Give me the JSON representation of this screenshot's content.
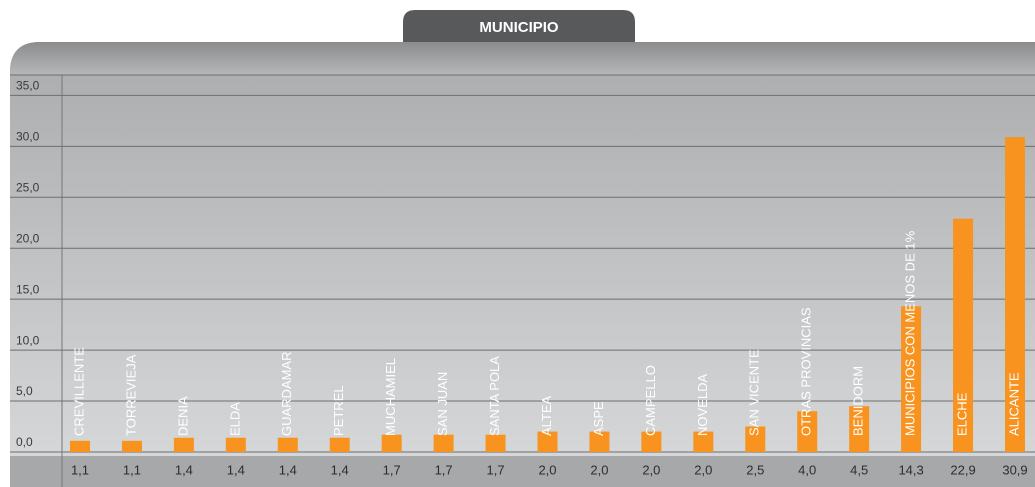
{
  "chart_data": {
    "type": "bar",
    "title": "MUNICIPIO",
    "categories": [
      "CREVILLENTE",
      "TORREVIEJA",
      "DENIA",
      "ELDA",
      "GUARDAMAR",
      "PETREL",
      "MUCHAMIEL",
      "SAN JUAN",
      "SANTA POLA",
      "ALTEA",
      "ASPE",
      "CAMPELLO",
      "NOVELDA",
      "SAN VICENTE",
      "OTRAS PROVINCIAS",
      "BENIDORM",
      "MUNICIPIOS CON MENOS DE 1%",
      "ELCHE",
      "ALICANTE"
    ],
    "values": [
      1.1,
      1.1,
      1.4,
      1.4,
      1.4,
      1.4,
      1.7,
      1.7,
      1.7,
      2.0,
      2.0,
      2.0,
      2.0,
      2.5,
      4.0,
      4.5,
      14.3,
      22.9,
      30.9
    ],
    "value_labels": [
      "1,1",
      "1,1",
      "1,4",
      "1,4",
      "1,4",
      "1,4",
      "1,7",
      "1,7",
      "1,7",
      "2,0",
      "2,0",
      "2,0",
      "2,0",
      "2,5",
      "4,0",
      "4,5",
      "14,3",
      "22,9",
      "30,9"
    ],
    "color": "#f7931e",
    "ylim": [
      0,
      37
    ],
    "yticks": [
      {
        "value": 0,
        "label": "0,0"
      },
      {
        "value": 5,
        "label": "5,0"
      },
      {
        "value": 10,
        "label": "10,0"
      },
      {
        "value": 15,
        "label": "15,0"
      },
      {
        "value": 20,
        "label": "20,0"
      },
      {
        "value": 25,
        "label": "25,0"
      },
      {
        "value": 30,
        "label": "30,0"
      },
      {
        "value": 35,
        "label": "35,0"
      }
    ],
    "grid": true
  }
}
